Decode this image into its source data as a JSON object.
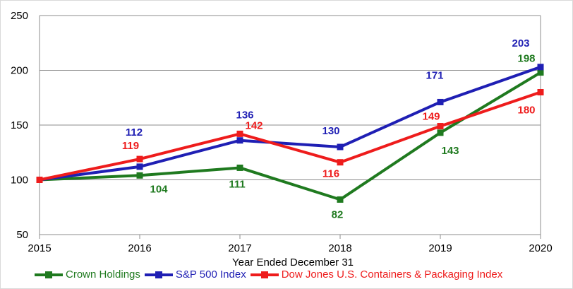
{
  "chart_data": {
    "type": "line",
    "categories": [
      "2015",
      "2016",
      "2017",
      "2018",
      "2019",
      "2020"
    ],
    "xlabel": "Year Ended December 31",
    "ylim": [
      50,
      250
    ],
    "yticks": [
      "50",
      "100",
      "150",
      "200",
      "250"
    ],
    "grid": true,
    "legend_position": "bottom",
    "series": [
      {
        "name": "Crown Holdings",
        "color": "#1f7a1f",
        "marker": "square",
        "values": [
          100,
          104,
          111,
          82,
          143,
          198
        ],
        "labels": [
          "",
          "104",
          "111",
          "82",
          "143",
          "198"
        ]
      },
      {
        "name": "S&P 500 Index",
        "color": "#1f1fb4",
        "marker": "square",
        "values": [
          100,
          112,
          136,
          130,
          171,
          203
        ],
        "labels": [
          "",
          "112",
          "136",
          "130",
          "171",
          "203"
        ]
      },
      {
        "name": "Dow Jones U.S. Containers & Packaging Index",
        "color": "#ee1c1c",
        "marker": "square",
        "values": [
          100,
          119,
          142,
          116,
          149,
          180
        ],
        "labels": [
          "",
          "119",
          "142",
          "116",
          "149",
          "180"
        ]
      }
    ]
  }
}
